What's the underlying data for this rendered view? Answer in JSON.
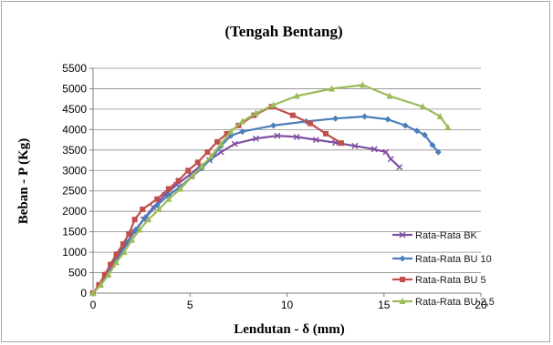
{
  "chart_data": {
    "type": "line",
    "title": "(Tengah Bentang)",
    "xlabel": "Lendutan - δ (mm)",
    "ylabel": "Beban - P (Kg)",
    "xlim": [
      0,
      20
    ],
    "ylim": [
      0,
      5500
    ],
    "xticks": [
      0,
      5,
      10,
      15,
      20
    ],
    "yticks": [
      0,
      500,
      1000,
      1500,
      2000,
      2500,
      3000,
      3500,
      4000,
      4500,
      5000,
      5500
    ],
    "grid": "horizontal",
    "legend_position": "right",
    "series": [
      {
        "name": "Rata-Rata BK",
        "color": "#7f4fa0",
        "marker": "x",
        "points": [
          [
            0,
            0
          ],
          [
            0.35,
            200
          ],
          [
            0.7,
            450
          ],
          [
            1.0,
            700
          ],
          [
            1.3,
            950
          ],
          [
            1.7,
            1200
          ],
          [
            2.1,
            1500
          ],
          [
            2.6,
            1800
          ],
          [
            3.1,
            2100
          ],
          [
            3.7,
            2400
          ],
          [
            4.3,
            2650
          ],
          [
            5.0,
            2900
          ],
          [
            5.5,
            3100
          ],
          [
            6.0,
            3250
          ],
          [
            6.6,
            3450
          ],
          [
            7.3,
            3650
          ],
          [
            8.4,
            3780
          ],
          [
            9.5,
            3850
          ],
          [
            10.5,
            3820
          ],
          [
            11.5,
            3750
          ],
          [
            12.5,
            3680
          ],
          [
            13.5,
            3600
          ],
          [
            14.5,
            3520
          ],
          [
            15.1,
            3450
          ],
          [
            15.35,
            3280
          ],
          [
            15.8,
            3080
          ]
        ]
      },
      {
        "name": "Rata-Rata BU 10",
        "color": "#4a7ebb",
        "marker": "diamond",
        "points": [
          [
            0,
            0
          ],
          [
            0.35,
            200
          ],
          [
            0.7,
            450
          ],
          [
            1.0,
            700
          ],
          [
            1.4,
            950
          ],
          [
            1.8,
            1250
          ],
          [
            2.2,
            1550
          ],
          [
            2.7,
            1850
          ],
          [
            3.3,
            2150
          ],
          [
            3.9,
            2400
          ],
          [
            4.5,
            2600
          ],
          [
            5.1,
            2850
          ],
          [
            5.6,
            3050
          ],
          [
            6.1,
            3300
          ],
          [
            6.6,
            3600
          ],
          [
            7.1,
            3850
          ],
          [
            7.7,
            3950
          ],
          [
            9.3,
            4100
          ],
          [
            11.0,
            4200
          ],
          [
            12.5,
            4270
          ],
          [
            14.0,
            4320
          ],
          [
            15.2,
            4250
          ],
          [
            16.1,
            4100
          ],
          [
            16.7,
            3970
          ],
          [
            17.1,
            3870
          ],
          [
            17.5,
            3620
          ],
          [
            17.8,
            3450
          ]
        ]
      },
      {
        "name": "Rata-Rata BU 5",
        "color": "#c0504d",
        "marker": "square",
        "points": [
          [
            0,
            0
          ],
          [
            0.3,
            200
          ],
          [
            0.6,
            450
          ],
          [
            0.9,
            700
          ],
          [
            1.2,
            950
          ],
          [
            1.55,
            1200
          ],
          [
            1.85,
            1450
          ],
          [
            2.15,
            1800
          ],
          [
            2.55,
            2050
          ],
          [
            3.3,
            2300
          ],
          [
            3.9,
            2550
          ],
          [
            4.4,
            2750
          ],
          [
            4.9,
            3000
          ],
          [
            5.4,
            3200
          ],
          [
            5.9,
            3450
          ],
          [
            6.4,
            3700
          ],
          [
            6.9,
            3900
          ],
          [
            7.5,
            4100
          ],
          [
            8.3,
            4350
          ],
          [
            9.2,
            4560
          ],
          [
            10.3,
            4350
          ],
          [
            11.2,
            4150
          ],
          [
            12.0,
            3900
          ],
          [
            12.8,
            3670
          ]
        ]
      },
      {
        "name": "Rata-Rata BU 2,5",
        "color": "#9bbb59",
        "marker": "triangle",
        "points": [
          [
            0,
            0
          ],
          [
            0.4,
            200
          ],
          [
            0.8,
            450
          ],
          [
            1.2,
            750
          ],
          [
            1.6,
            1000
          ],
          [
            2.0,
            1300
          ],
          [
            2.4,
            1550
          ],
          [
            2.85,
            1800
          ],
          [
            3.4,
            2050
          ],
          [
            3.9,
            2300
          ],
          [
            4.5,
            2550
          ],
          [
            5.1,
            2850
          ],
          [
            5.6,
            3100
          ],
          [
            6.1,
            3350
          ],
          [
            6.6,
            3650
          ],
          [
            7.1,
            3950
          ],
          [
            7.7,
            4200
          ],
          [
            8.4,
            4400
          ],
          [
            9.3,
            4600
          ],
          [
            10.5,
            4820
          ],
          [
            12.3,
            5000
          ],
          [
            13.9,
            5090
          ],
          [
            15.3,
            4820
          ],
          [
            17.0,
            4560
          ],
          [
            17.9,
            4320
          ],
          [
            18.3,
            4050
          ]
        ]
      }
    ]
  }
}
